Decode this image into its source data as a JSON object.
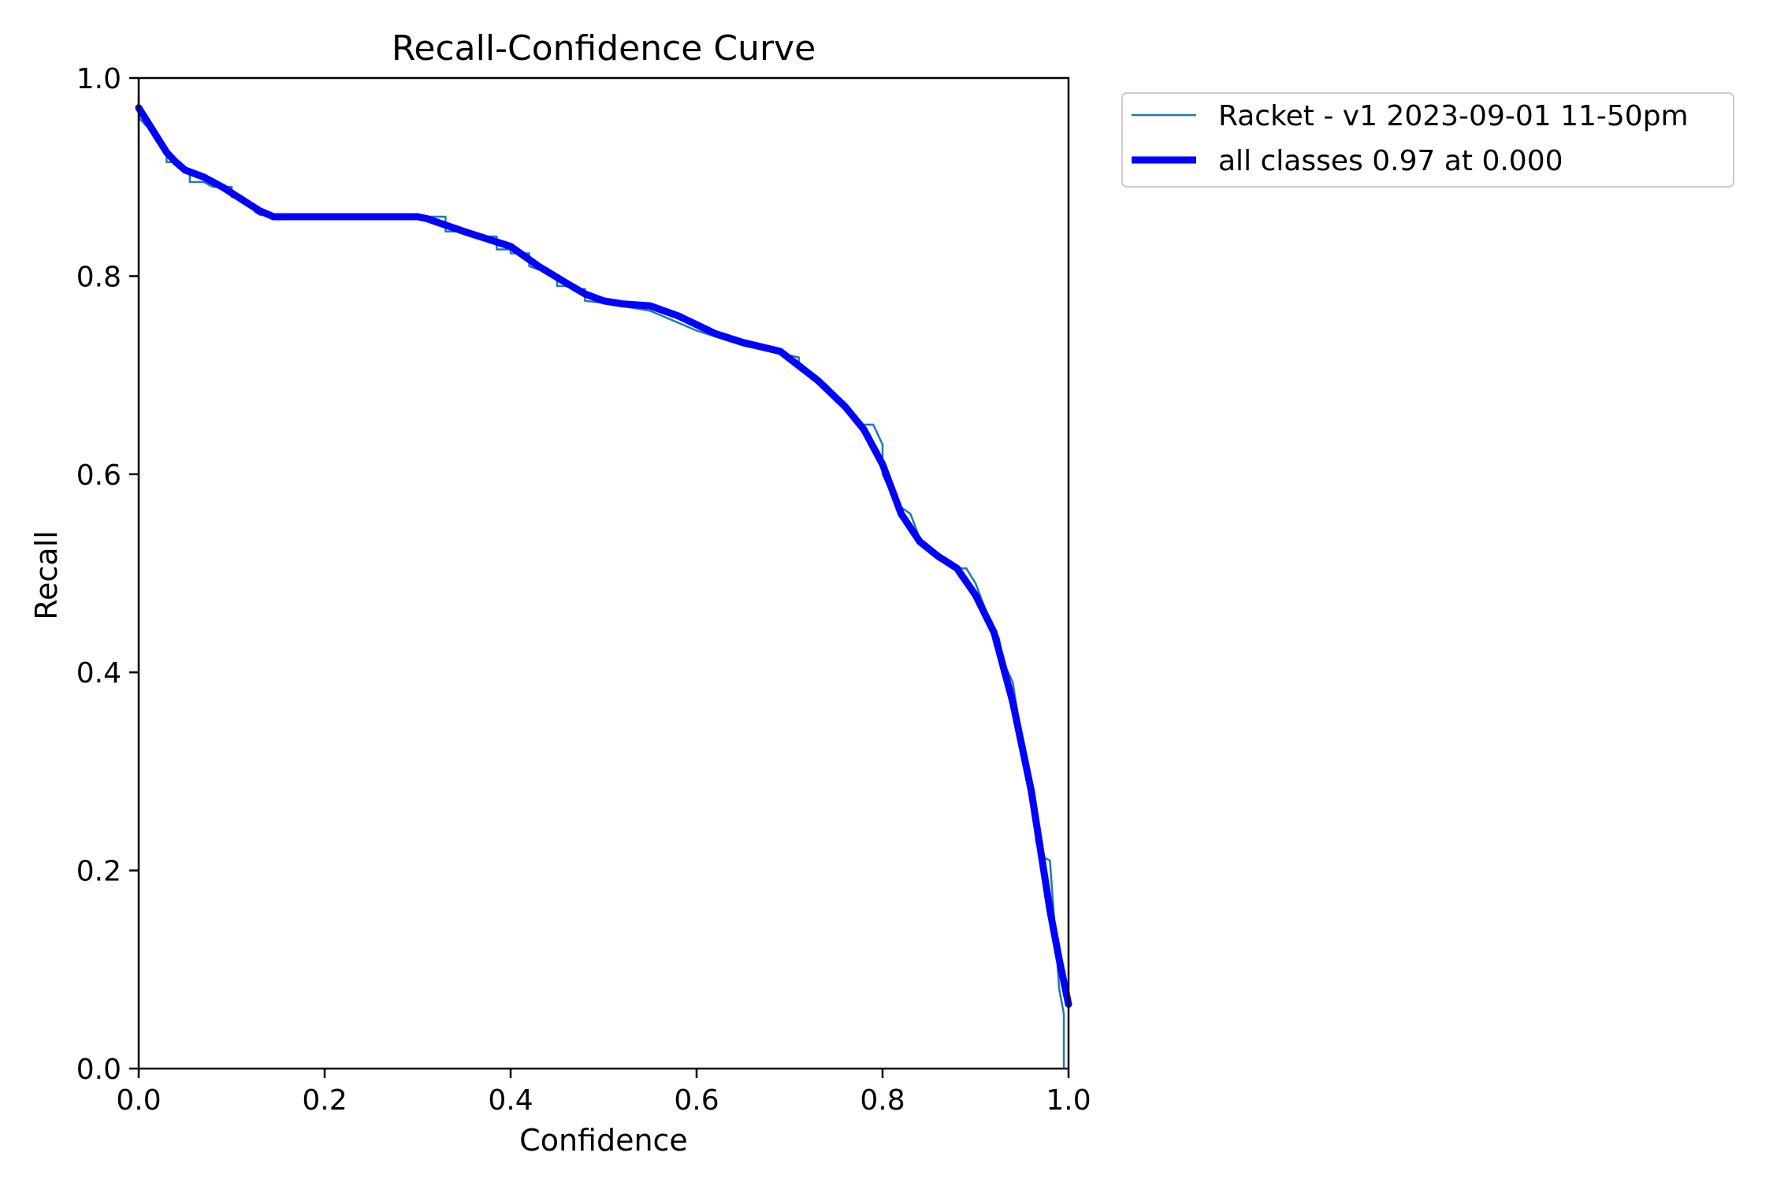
{
  "chart_data": {
    "type": "line",
    "title": "Recall-Confidence Curve",
    "xlabel": "Confidence",
    "ylabel": "Recall",
    "xlim": [
      0.0,
      1.0
    ],
    "ylim": [
      0.0,
      1.0
    ],
    "xticks": [
      "0.0",
      "0.2",
      "0.4",
      "0.6",
      "0.8",
      "1.0"
    ],
    "yticks": [
      "0.0",
      "0.2",
      "0.4",
      "0.6",
      "0.8",
      "1.0"
    ],
    "grid": false,
    "legend_position": "outside top-right",
    "series": [
      {
        "name": "Racket - v1 2023-09-01 11-50pm",
        "color": "#1f77b4",
        "style": "thin-stepped",
        "x": [
          0.0,
          0.0,
          0.01,
          0.02,
          0.025,
          0.03,
          0.03,
          0.045,
          0.045,
          0.055,
          0.055,
          0.07,
          0.08,
          0.1,
          0.1,
          0.12,
          0.125,
          0.13,
          0.145,
          0.2,
          0.26,
          0.3,
          0.31,
          0.33,
          0.33,
          0.35,
          0.37,
          0.385,
          0.385,
          0.4,
          0.4,
          0.42,
          0.42,
          0.45,
          0.45,
          0.46,
          0.47,
          0.48,
          0.48,
          0.5,
          0.55,
          0.6,
          0.65,
          0.7,
          0.71,
          0.71,
          0.72,
          0.74,
          0.75,
          0.77,
          0.775,
          0.79,
          0.8,
          0.8,
          0.81,
          0.815,
          0.83,
          0.84,
          0.845,
          0.86,
          0.87,
          0.885,
          0.89,
          0.9,
          0.91,
          0.92,
          0.925,
          0.93,
          0.94,
          0.95,
          0.96,
          0.965,
          0.965,
          0.97,
          0.98,
          0.99,
          0.995,
          0.995
        ],
        "y": [
          0.98,
          0.96,
          0.95,
          0.935,
          0.93,
          0.925,
          0.915,
          0.915,
          0.91,
          0.905,
          0.895,
          0.895,
          0.89,
          0.89,
          0.88,
          0.875,
          0.865,
          0.862,
          0.86,
          0.86,
          0.86,
          0.86,
          0.86,
          0.86,
          0.845,
          0.845,
          0.84,
          0.84,
          0.827,
          0.827,
          0.823,
          0.823,
          0.81,
          0.8,
          0.79,
          0.79,
          0.787,
          0.787,
          0.775,
          0.773,
          0.765,
          0.745,
          0.73,
          0.72,
          0.718,
          0.71,
          0.705,
          0.69,
          0.68,
          0.66,
          0.65,
          0.65,
          0.63,
          0.6,
          0.58,
          0.57,
          0.56,
          0.535,
          0.525,
          0.515,
          0.51,
          0.505,
          0.505,
          0.49,
          0.465,
          0.44,
          0.435,
          0.41,
          0.39,
          0.33,
          0.28,
          0.25,
          0.23,
          0.215,
          0.21,
          0.08,
          0.055,
          0.0
        ]
      },
      {
        "name": "all classes 0.97 at 0.000",
        "color": "#0000ff",
        "style": "thick",
        "x": [
          0.0,
          0.01,
          0.02,
          0.03,
          0.04,
          0.05,
          0.07,
          0.09,
          0.11,
          0.13,
          0.145,
          0.2,
          0.25,
          0.3,
          0.31,
          0.35,
          0.4,
          0.43,
          0.46,
          0.48,
          0.5,
          0.52,
          0.55,
          0.58,
          0.62,
          0.65,
          0.69,
          0.73,
          0.76,
          0.78,
          0.8,
          0.82,
          0.84,
          0.86,
          0.88,
          0.9,
          0.92,
          0.94,
          0.96,
          0.98,
          0.99,
          1.0
        ],
        "y": [
          0.97,
          0.955,
          0.94,
          0.925,
          0.915,
          0.907,
          0.9,
          0.89,
          0.878,
          0.866,
          0.86,
          0.86,
          0.86,
          0.86,
          0.858,
          0.845,
          0.83,
          0.81,
          0.793,
          0.782,
          0.775,
          0.772,
          0.77,
          0.76,
          0.742,
          0.733,
          0.724,
          0.695,
          0.668,
          0.645,
          0.61,
          0.56,
          0.532,
          0.517,
          0.505,
          0.478,
          0.44,
          0.37,
          0.28,
          0.16,
          0.11,
          0.065
        ]
      }
    ]
  }
}
